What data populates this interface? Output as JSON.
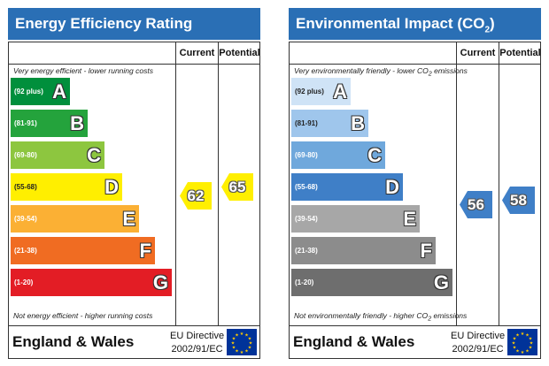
{
  "energy": {
    "title": "Energy Efficiency Rating",
    "col_current": "Current",
    "col_potential": "Potential",
    "top_note": "Very energy efficient - lower running costs",
    "bottom_note": "Not energy efficient - higher running costs",
    "bands": [
      {
        "range": "(92 plus)",
        "letter": "A",
        "color": "#008f3c"
      },
      {
        "range": "(81-91)",
        "letter": "B",
        "color": "#24a33c"
      },
      {
        "range": "(69-80)",
        "letter": "C",
        "color": "#8dc63f"
      },
      {
        "range": "(55-68)",
        "letter": "D",
        "color": "#ffef00"
      },
      {
        "range": "(39-54)",
        "letter": "E",
        "color": "#fbb034"
      },
      {
        "range": "(21-38)",
        "letter": "F",
        "color": "#f06c22"
      },
      {
        "range": "(1-20)",
        "letter": "G",
        "color": "#e31d25"
      }
    ],
    "current": {
      "value": "62",
      "band": "D",
      "color": "#ffef00"
    },
    "potential": {
      "value": "65",
      "band": "D",
      "color": "#ffef00"
    },
    "country": "England & Wales",
    "directive_line1": "EU Directive",
    "directive_line2": "2002/91/EC"
  },
  "environment": {
    "title_prefix": "Environmental Impact (CO",
    "title_sub": "2",
    "title_suffix": ") Rating",
    "col_current": "Current",
    "col_potential": "Potential",
    "top_note_prefix": "Very environmentally friendly - lower CO",
    "top_note_sub": "2",
    "top_note_suffix": " emissions",
    "bottom_note_prefix": "Not environmentally friendly - higher CO",
    "bottom_note_sub": "2",
    "bottom_note_suffix": " emissions",
    "bands": [
      {
        "range": "(92 plus)",
        "letter": "A",
        "color": "#cfe3f6"
      },
      {
        "range": "(81-91)",
        "letter": "B",
        "color": "#9fc6ec"
      },
      {
        "range": "(69-80)",
        "letter": "C",
        "color": "#6fa8dc"
      },
      {
        "range": "(55-68)",
        "letter": "D",
        "color": "#3f7fc7"
      },
      {
        "range": "(39-54)",
        "letter": "E",
        "color": "#a7a7a7"
      },
      {
        "range": "(21-38)",
        "letter": "F",
        "color": "#8c8c8c"
      },
      {
        "range": "(1-20)",
        "letter": "G",
        "color": "#6e6e6e"
      }
    ],
    "current": {
      "value": "56",
      "band": "D",
      "color": "#3f7fc7"
    },
    "potential": {
      "value": "58",
      "band": "D",
      "color": "#3f7fc7"
    },
    "country": "England & Wales",
    "directive_line1": "EU Directive",
    "directive_line2": "2002/91/EC"
  },
  "title_bar_color": "#2a6fb5",
  "eu_flag_icon": "eu-flag-icon"
}
